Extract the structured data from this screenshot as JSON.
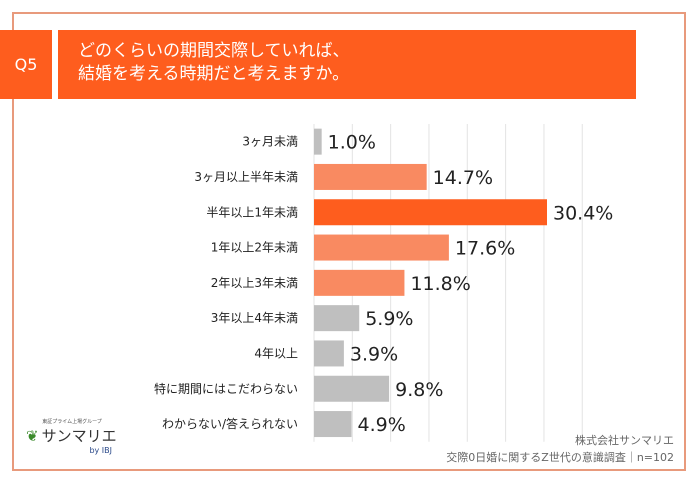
{
  "header": {
    "question_no": "Q5",
    "title_line1": "どのくらいの期間交際していれば、",
    "title_line2": "結婚を考える時期だと考えますか。"
  },
  "chart_data": {
    "type": "bar",
    "orientation": "horizontal",
    "categories": [
      "3ヶ月未満",
      "3ヶ月以上半年未満",
      "半年以上1年未満",
      "1年以上2年未満",
      "2年以上3年未満",
      "3年以上4年未満",
      "4年以上",
      "特に期間にはこだわらない",
      "わからない/答えられない"
    ],
    "values": [
      1.0,
      14.7,
      30.4,
      17.6,
      11.8,
      5.9,
      3.9,
      9.8,
      4.9
    ],
    "labels": [
      "1.0%",
      "14.7%",
      "30.4%",
      "17.6%",
      "11.8%",
      "5.9%",
      "3.9%",
      "9.8%",
      "4.9%"
    ],
    "colors": [
      "#bfbfbf",
      "#f98a61",
      "#fe5d1e",
      "#f98a61",
      "#f98a61",
      "#bfbfbf",
      "#bfbfbf",
      "#bfbfbf",
      "#bfbfbf"
    ],
    "xlim": [
      0,
      35
    ],
    "grid": true
  },
  "logo": {
    "tagline": "東証プライム上場グループ",
    "name": "サンマリエ",
    "by": "by IBJ"
  },
  "source": {
    "company": "株式会社サンマリエ",
    "survey": "交際0日婚に関するZ世代の意識調査｜n=102"
  }
}
